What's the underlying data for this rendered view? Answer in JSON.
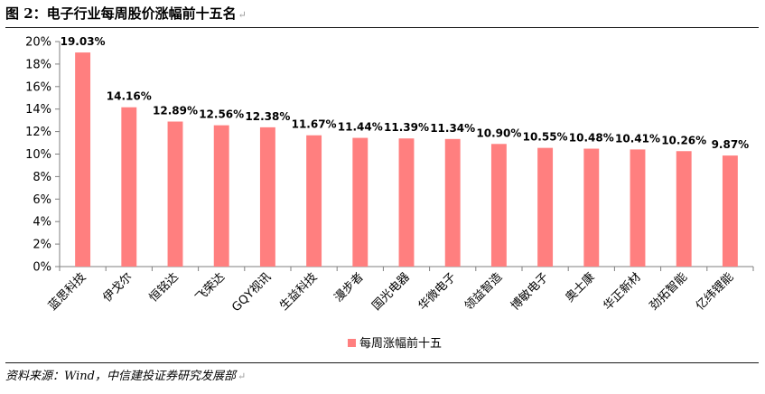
{
  "figure": {
    "title": "图 2：电子行业每周股价涨幅前十五名",
    "source": "资料来源：Wind，中信建投证券研究发展部"
  },
  "colors": {
    "bar": "#ff7f7f",
    "axis": "#7f7f7f",
    "text": "#000000"
  },
  "chart_data": {
    "type": "bar",
    "categories": [
      "蓝思科技",
      "伊戈尔",
      "恒铭达",
      "飞荣达",
      "GQY视讯",
      "生益科技",
      "漫步者",
      "国光电器",
      "华微电子",
      "领益智造",
      "博敏电子",
      "奥士康",
      "华正新材",
      "劲拓智能",
      "亿纬锂能"
    ],
    "series": [
      {
        "name": "每周涨幅前十五",
        "values": [
          19.03,
          14.16,
          12.89,
          12.56,
          12.38,
          11.67,
          11.44,
          11.39,
          11.34,
          10.9,
          10.55,
          10.48,
          10.41,
          10.26,
          9.87
        ]
      }
    ],
    "data_labels": [
      "19.03%",
      "14.16%",
      "12.89%",
      "12.56%",
      "12.38%",
      "11.67%",
      "11.44%",
      "11.39%",
      "11.34%",
      "10.90%",
      "10.55%",
      "10.48%",
      "10.41%",
      "10.26%",
      "9.87%"
    ],
    "y_ticks": [
      "0%",
      "2%",
      "4%",
      "6%",
      "8%",
      "10%",
      "12%",
      "14%",
      "16%",
      "18%",
      "20%"
    ],
    "ylim": [
      0,
      20
    ],
    "title": "",
    "xlabel": "",
    "ylabel": "",
    "grid": false,
    "legend_position": "bottom-center"
  }
}
